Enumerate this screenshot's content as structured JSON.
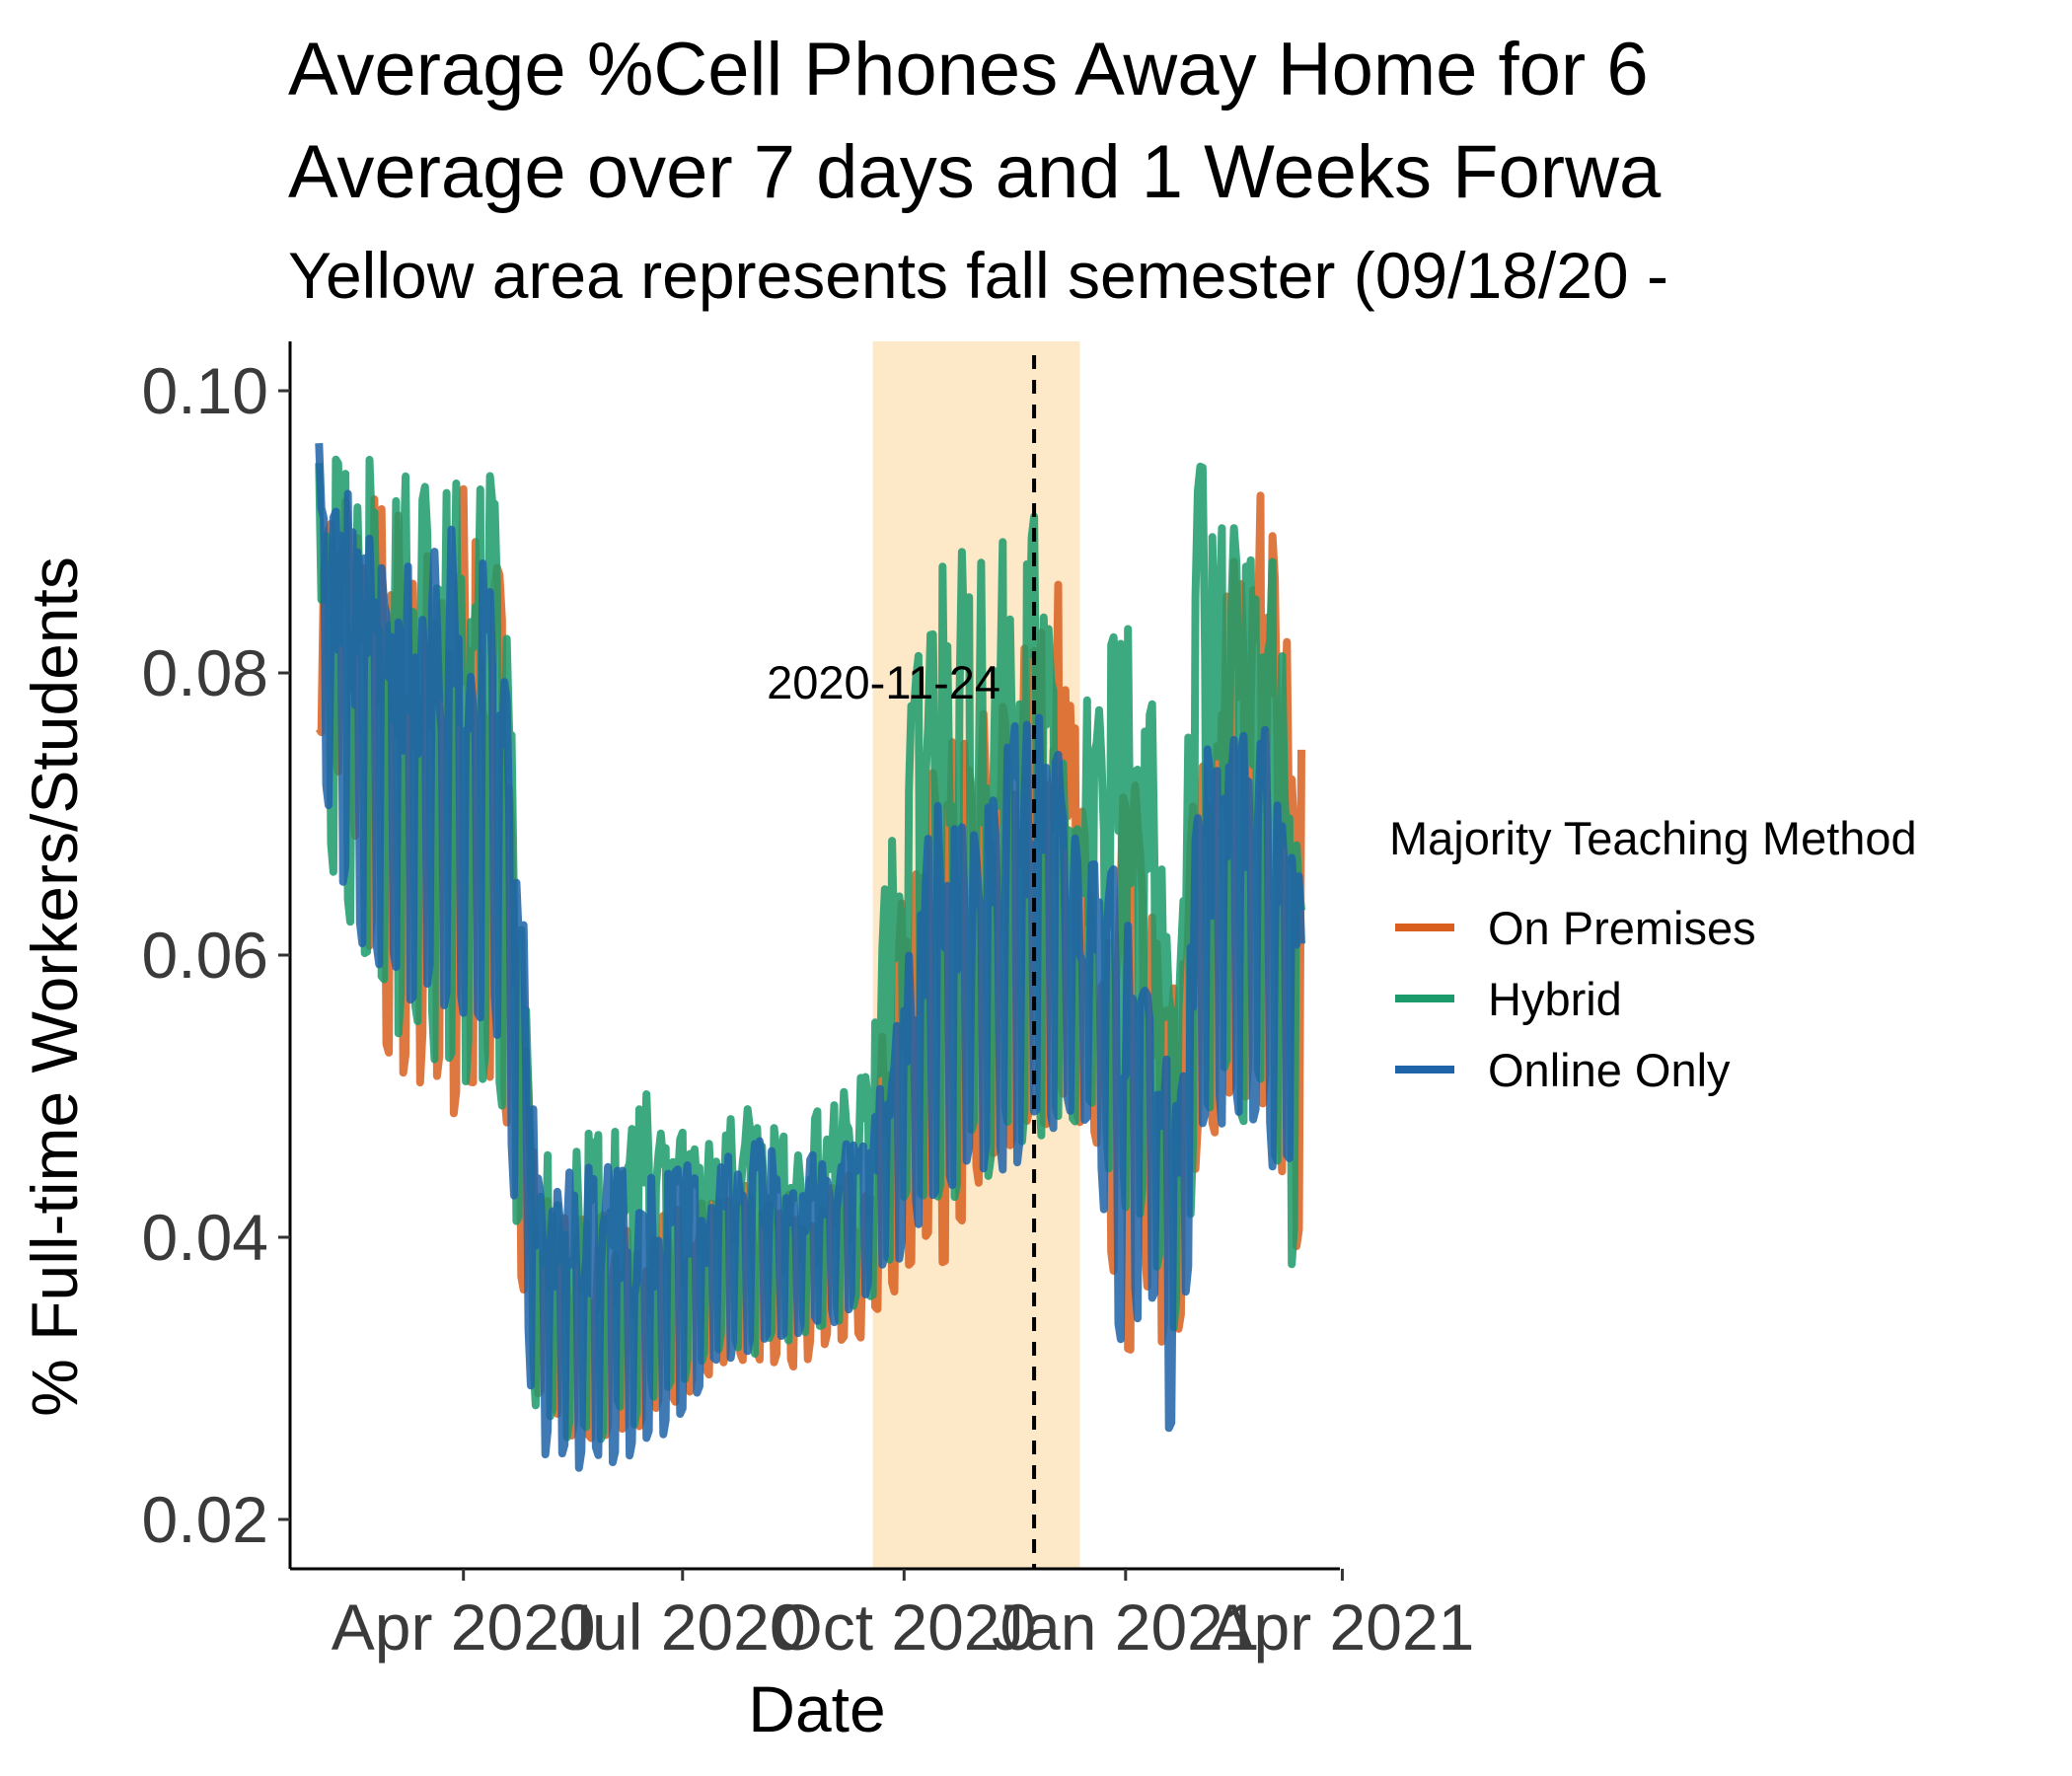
{
  "chart_data": {
    "type": "line",
    "title_line1": "Average %Cell Phones Away Home for 6",
    "title_line2": "Average over 7 days and 1 Weeks Forwa",
    "subtitle": "Yellow area represents fall semester (09/18/20 -",
    "xlabel": "Date",
    "ylabel": "% Full-time Workers/Students",
    "xlim": [
      "2020-01-20",
      "2021-03-31"
    ],
    "ylim": [
      0.0165,
      0.1035
    ],
    "yticks": [
      0.02,
      0.04,
      0.06,
      0.08,
      0.1
    ],
    "ytick_labels": [
      "0.02",
      "0.04",
      "0.06",
      "0.08",
      "0.10"
    ],
    "xticks": [
      "2020-04-01",
      "2020-07-01",
      "2020-10-01",
      "2021-01-01",
      "2021-04-01"
    ],
    "xtick_labels": [
      "Apr 2020",
      "Jul 2020",
      "Oct 2020",
      "Jan 2021",
      "Apr 2021"
    ],
    "shaded_region": {
      "start": "2020-09-18",
      "end": "2020-12-13",
      "color": "#fde8c8"
    },
    "vline": {
      "date": "2020-11-24",
      "label": "2020-11-24",
      "style": "dashed"
    },
    "legend": {
      "title": "Majority Teaching Method",
      "position": "right"
    },
    "grid": false,
    "series": [
      {
        "name": "On Premises",
        "color": "#d95f1e",
        "envelope": [
          [
            "2020-02-01",
            0.074,
            0.097
          ],
          [
            "2020-02-15",
            0.068,
            0.094
          ],
          [
            "2020-03-01",
            0.049,
            0.092
          ],
          [
            "2020-03-15",
            0.049,
            0.09
          ],
          [
            "2020-04-01",
            0.046,
            0.094
          ],
          [
            "2020-04-15",
            0.05,
            0.09
          ],
          [
            "2020-04-23",
            0.038,
            0.07
          ],
          [
            "2020-05-01",
            0.028,
            0.043
          ],
          [
            "2020-05-15",
            0.025,
            0.042
          ],
          [
            "2020-06-01",
            0.025,
            0.043
          ],
          [
            "2020-06-15",
            0.026,
            0.041
          ],
          [
            "2020-07-01",
            0.028,
            0.043
          ],
          [
            "2020-07-15",
            0.03,
            0.043
          ],
          [
            "2020-08-01",
            0.03,
            0.044
          ],
          [
            "2020-08-15",
            0.03,
            0.043
          ],
          [
            "2020-09-01",
            0.032,
            0.044
          ],
          [
            "2020-09-15",
            0.032,
            0.046
          ],
          [
            "2020-10-01",
            0.036,
            0.067
          ],
          [
            "2020-10-15",
            0.035,
            0.075
          ],
          [
            "2020-11-01",
            0.042,
            0.077
          ],
          [
            "2020-11-15",
            0.043,
            0.082
          ],
          [
            "2020-11-24",
            0.044,
            0.084
          ],
          [
            "2020-12-01",
            0.046,
            0.086
          ],
          [
            "2020-12-10",
            0.046,
            0.088
          ],
          [
            "2020-12-20",
            0.046,
            0.06
          ],
          [
            "2021-01-01",
            0.029,
            0.073
          ],
          [
            "2021-01-10",
            0.035,
            0.071
          ],
          [
            "2021-01-20",
            0.027,
            0.06
          ],
          [
            "2021-02-01",
            0.044,
            0.085
          ],
          [
            "2021-02-15",
            0.047,
            0.09
          ],
          [
            "2021-03-01",
            0.047,
            0.097
          ],
          [
            "2021-03-15",
            0.036,
            0.08
          ]
        ]
      },
      {
        "name": "Hybrid",
        "color": "#1b9a6b",
        "envelope": [
          [
            "2020-02-01",
            0.067,
            0.099
          ],
          [
            "2020-02-15",
            0.058,
            0.097
          ],
          [
            "2020-03-01",
            0.052,
            0.094
          ],
          [
            "2020-03-15",
            0.05,
            0.096
          ],
          [
            "2020-04-01",
            0.048,
            0.097
          ],
          [
            "2020-04-15",
            0.05,
            0.095
          ],
          [
            "2020-04-23",
            0.038,
            0.08
          ],
          [
            "2020-05-01",
            0.027,
            0.046
          ],
          [
            "2020-05-15",
            0.024,
            0.047
          ],
          [
            "2020-06-01",
            0.025,
            0.048
          ],
          [
            "2020-06-15",
            0.026,
            0.051
          ],
          [
            "2020-07-01",
            0.029,
            0.049
          ],
          [
            "2020-07-15",
            0.031,
            0.05
          ],
          [
            "2020-08-01",
            0.031,
            0.049
          ],
          [
            "2020-08-15",
            0.032,
            0.047
          ],
          [
            "2020-09-01",
            0.033,
            0.05
          ],
          [
            "2020-09-15",
            0.034,
            0.052
          ],
          [
            "2020-10-01",
            0.038,
            0.078
          ],
          [
            "2020-10-15",
            0.04,
            0.092
          ],
          [
            "2020-11-01",
            0.042,
            0.088
          ],
          [
            "2020-11-15",
            0.043,
            0.09
          ],
          [
            "2020-11-24",
            0.044,
            0.093
          ],
          [
            "2020-12-01",
            0.046,
            0.084
          ],
          [
            "2020-12-10",
            0.045,
            0.076
          ],
          [
            "2020-12-20",
            0.046,
            0.08
          ],
          [
            "2021-01-01",
            0.038,
            0.085
          ],
          [
            "2021-01-10",
            0.037,
            0.083
          ],
          [
            "2021-01-20",
            0.031,
            0.06
          ],
          [
            "2021-02-01",
            0.044,
            0.099
          ],
          [
            "2021-02-15",
            0.046,
            0.095
          ],
          [
            "2021-03-01",
            0.045,
            0.092
          ],
          [
            "2021-03-15",
            0.033,
            0.072
          ]
        ]
      },
      {
        "name": "Online Only",
        "color": "#1f63a8",
        "envelope": [
          [
            "2020-02-01",
            0.072,
            0.097
          ],
          [
            "2020-02-15",
            0.06,
            0.092
          ],
          [
            "2020-03-01",
            0.056,
            0.09
          ],
          [
            "2020-03-15",
            0.055,
            0.088
          ],
          [
            "2020-04-01",
            0.054,
            0.092
          ],
          [
            "2020-04-15",
            0.052,
            0.09
          ],
          [
            "2020-04-23",
            0.04,
            0.075
          ],
          [
            "2020-05-01",
            0.024,
            0.046
          ],
          [
            "2020-05-15",
            0.022,
            0.048
          ],
          [
            "2020-06-01",
            0.023,
            0.046
          ],
          [
            "2020-06-15",
            0.024,
            0.045
          ],
          [
            "2020-07-01",
            0.026,
            0.045
          ],
          [
            "2020-07-15",
            0.03,
            0.046
          ],
          [
            "2020-08-01",
            0.031,
            0.047
          ],
          [
            "2020-08-15",
            0.032,
            0.046
          ],
          [
            "2020-09-01",
            0.033,
            0.047
          ],
          [
            "2020-09-15",
            0.035,
            0.048
          ],
          [
            "2020-10-01",
            0.038,
            0.06
          ],
          [
            "2020-10-15",
            0.041,
            0.072
          ],
          [
            "2020-11-01",
            0.043,
            0.073
          ],
          [
            "2020-11-15",
            0.043,
            0.076
          ],
          [
            "2020-11-24",
            0.044,
            0.08
          ],
          [
            "2020-12-01",
            0.046,
            0.078
          ],
          [
            "2020-12-10",
            0.047,
            0.072
          ],
          [
            "2020-12-20",
            0.045,
            0.068
          ],
          [
            "2021-01-01",
            0.028,
            0.068
          ],
          [
            "2021-01-10",
            0.036,
            0.066
          ],
          [
            "2021-01-20",
            0.024,
            0.05
          ],
          [
            "2021-02-01",
            0.046,
            0.074
          ],
          [
            "2021-02-15",
            0.047,
            0.08
          ],
          [
            "2021-03-01",
            0.044,
            0.076
          ],
          [
            "2021-03-15",
            0.04,
            0.071
          ]
        ]
      }
    ]
  }
}
